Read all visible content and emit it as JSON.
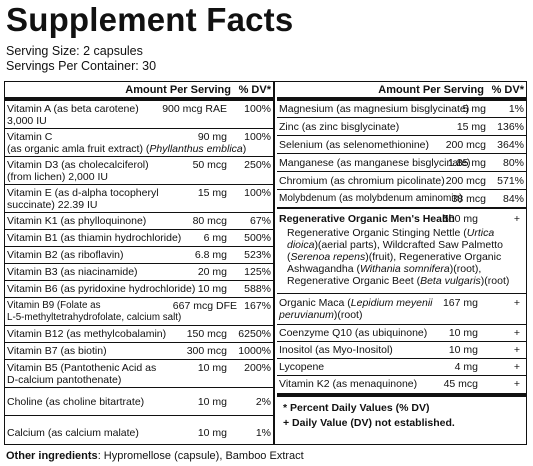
{
  "title": "Supplement Facts",
  "serving_size": "Serving Size: 2 capsules",
  "servings_per_container": "Servings Per Container: 30",
  "header": {
    "amount": "Amount Per Serving",
    "dv": "% DV*"
  },
  "left_rows": [
    {
      "line1": "Vitamin A (as beta carotene)",
      "line2": "3,000 IU",
      "amount": "900 mcg RAE",
      "dv": "100%"
    },
    {
      "line1": "Vitamin C",
      "line2_plain": "(as organic amla fruit extract) (",
      "line2_ital": "Phyllanthus emblica",
      "line2_end": ")",
      "amount": "90 mg",
      "dv": "100%"
    },
    {
      "line1": "Vitamin D3 (as cholecalciferol)",
      "line2": "(from lichen) 2,000 IU",
      "amount": "50 mcg",
      "dv": "250%"
    },
    {
      "line1": "Vitamin E (as d-alpha tocopheryl",
      "line2": "succinate) 22.39 IU",
      "amount": "15 mg",
      "dv": "100%"
    },
    {
      "line1": "Vitamin K1 (as phylloquinone)",
      "amount": "80 mcg",
      "dv": "67%"
    },
    {
      "line1": "Vitamin B1 (as thiamin hydrochloride)",
      "amount": "6 mg",
      "dv": "500%"
    },
    {
      "line1": "Vitamin B2 (as riboflavin)",
      "amount": "6.8 mg",
      "dv": "523%"
    },
    {
      "line1": "Vitamin B3 (as niacinamide)",
      "amount": "20 mg",
      "dv": "125%"
    },
    {
      "line1": "Vitamin B6 (as pyridoxine hydrochloride)",
      "amount": "10 mg",
      "dv": "588%"
    },
    {
      "line1": "Vitamin B9 (Folate as",
      "line2": "L-5-methyltetrahydrofolate, calcium salt)",
      "amount": "667 mcg DFE",
      "dv": "167%"
    },
    {
      "line1": "Vitamin B12 (as methylcobalamin)",
      "amount": "150 mcg",
      "dv": "6250%"
    },
    {
      "line1": "Vitamin B7 (as biotin)",
      "amount": "300 mcg",
      "dv": "1000%"
    },
    {
      "line1": "Vitamin B5 (Pantothenic Acid as",
      "line2": "D-calcium pantothenate)",
      "amount": "10 mg",
      "dv": "200%"
    },
    {
      "line1": "Choline (as choline bitartrate)",
      "amount": "10 mg",
      "dv": "2%"
    },
    {
      "line1": "Calcium (as calcium malate)",
      "amount": "10 mg",
      "dv": "1%"
    }
  ],
  "right_rows": [
    {
      "line1": "Magnesium (as magnesium bisglycinate)",
      "amount": "5 mg",
      "dv": "1%"
    },
    {
      "line1": "Zinc (as zinc bisglycinate)",
      "amount": "15 mg",
      "dv": "136%"
    },
    {
      "line1": "Selenium (as selenomethionine)",
      "amount": "200 mcg",
      "dv": "364%"
    },
    {
      "line1": "Manganese (as manganese bisglycinate)",
      "amount": "1.85 mg",
      "dv": "80%"
    },
    {
      "line1": "Chromium (as chromium picolinate)",
      "amount": "200 mcg",
      "dv": "571%"
    },
    {
      "line1": "Molybdenum (as molybdenum aminomin)",
      "amount": "38 mcg",
      "dv": "84%"
    }
  ],
  "blend": {
    "title": "Regenerative Organic Men's Health",
    "amount": "500 mg",
    "dv": "+",
    "l1a": "Regenerative Organic Stinging Nettle (",
    "l1i": "Urtica",
    "l2i": "dioica",
    "l2a": ")(aerial parts), Wildcrafted Saw Palmetto",
    "l3a": "(",
    "l3i": "Serenoa repens",
    "l3b": ")(fruit), Regenerative Organic",
    "l4a": "Ashwagandha (",
    "l4i": "Withania somnifera",
    "l4b": ")(root),",
    "l5a": "Regenerative Organic Beet (",
    "l5i": "Beta vulgaris",
    "l5b": ")(root)"
  },
  "maca": {
    "l1a": "Organic Maca (",
    "l1i": "Lepidium meyenii",
    "l2i": "peruvianum",
    "l2b": ")(root)",
    "amount": "167 mg",
    "dv": "+"
  },
  "right_rows2": [
    {
      "line1": "Coenzyme Q10 (as ubiquinone)",
      "amount": "10 mg",
      "dv": "+"
    },
    {
      "line1": "Inositol (as Myo-Inositol)",
      "amount": "10 mg",
      "dv": "+"
    },
    {
      "line1": "Lycopene",
      "amount": "4 mg",
      "dv": "+"
    },
    {
      "line1": "Vitamin K2 (as menaquinone)",
      "amount": "45 mcg",
      "dv": "+"
    }
  ],
  "footnote1": "* Percent Daily Values (% DV)",
  "footnote2": "+ Daily Value (DV) not established.",
  "other_label": "Other ingredients",
  "other_text": ": Hypromellose (capsule), Bamboo Extract"
}
